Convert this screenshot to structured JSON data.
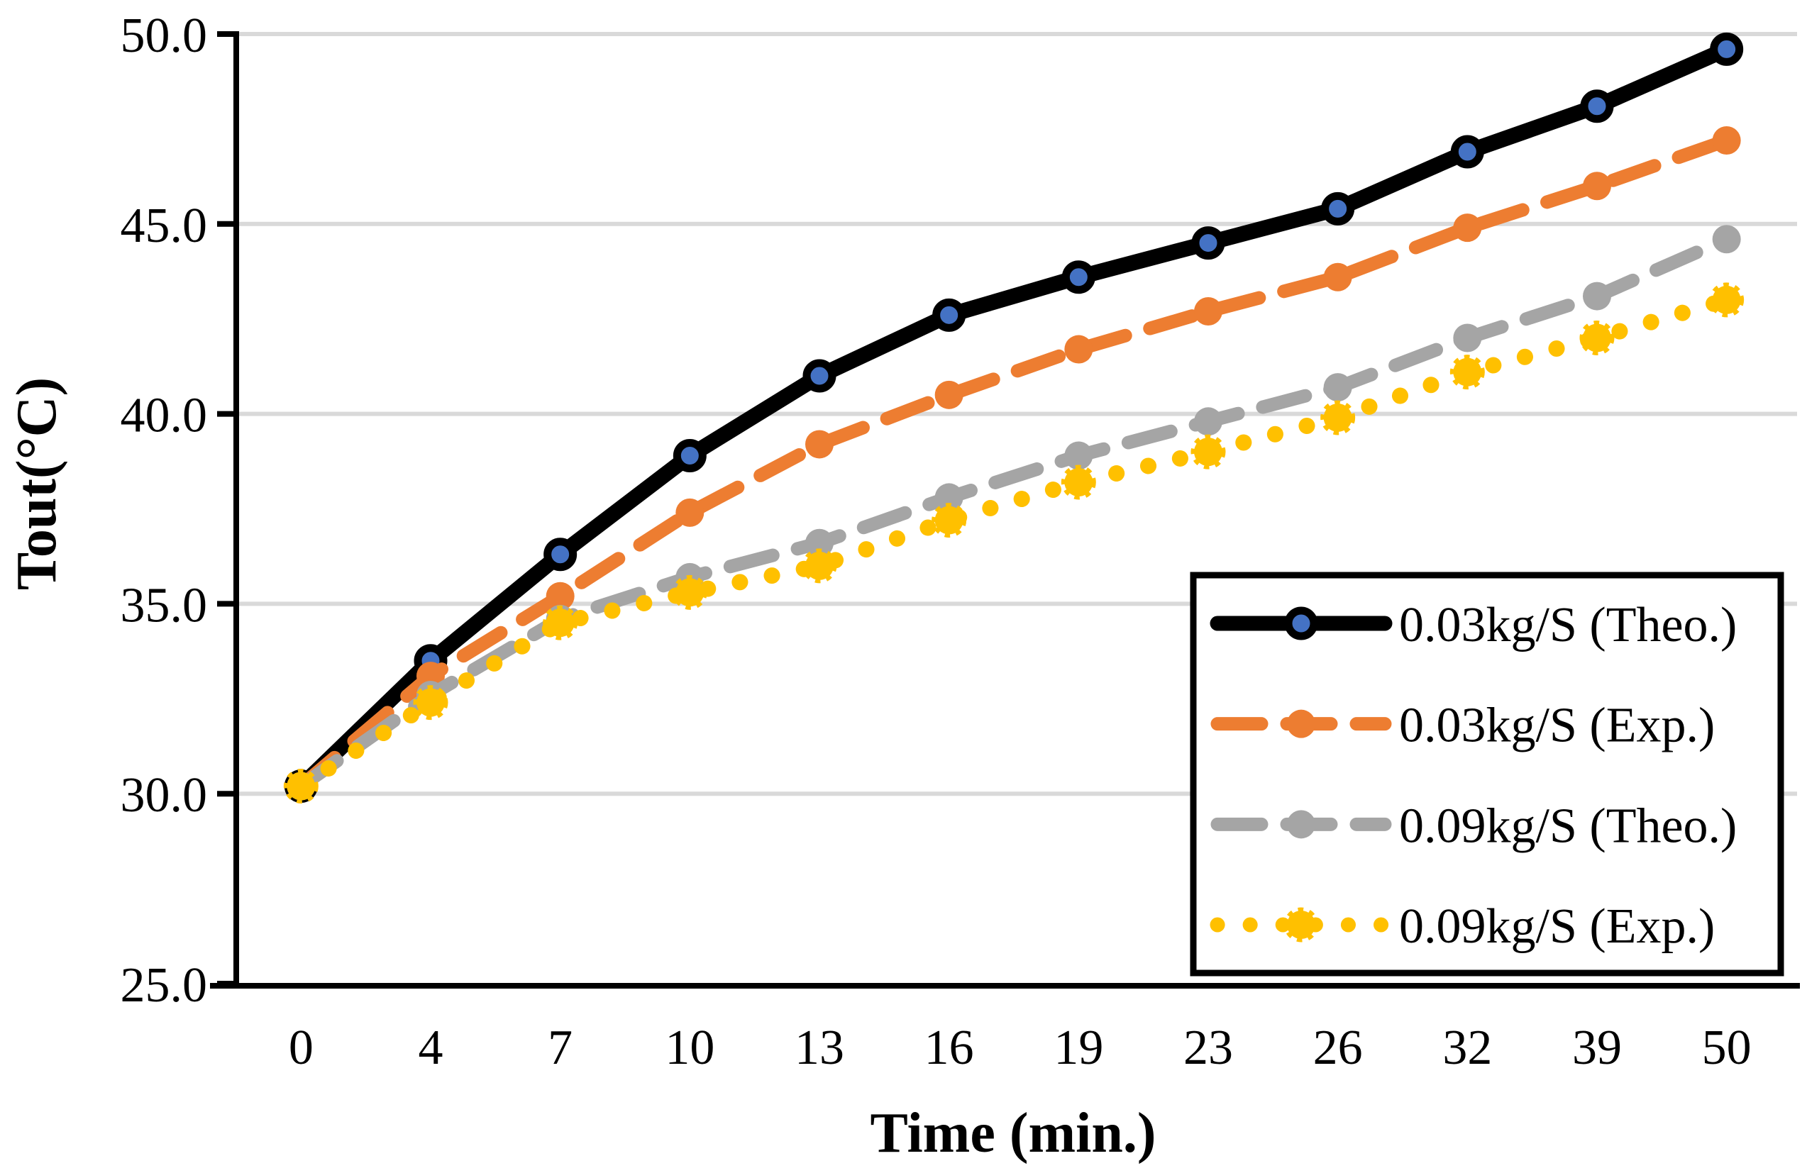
{
  "chart_data": {
    "type": "line",
    "title": "",
    "xlabel": "Time (min.)",
    "ylabel": "Tout(°C)",
    "categories": [
      "0",
      "4",
      "7",
      "10",
      "13",
      "16",
      "19",
      "23",
      "26",
      "32",
      "39",
      "50"
    ],
    "ylim": [
      25.0,
      50.0
    ],
    "ytick_step": 5.0,
    "ytick_labels": [
      "25.0",
      "30.0",
      "35.0",
      "40.0",
      "45.0",
      "50.0"
    ],
    "grid": true,
    "legend_position": "inside-bottom-right",
    "series": [
      {
        "name": "0.03kg/S (Theo.)",
        "values": [
          30.2,
          33.5,
          36.3,
          38.9,
          41.0,
          42.6,
          43.6,
          44.5,
          45.4,
          46.9,
          48.1,
          49.6
        ],
        "line_color": "#000000",
        "marker_color": "#4472C4",
        "marker_outline": "#000000",
        "style": "solid",
        "line_width": 22
      },
      {
        "name": "0.03kg/S (Exp.)",
        "values": [
          30.2,
          33.1,
          35.2,
          37.4,
          39.2,
          40.5,
          41.7,
          42.7,
          43.6,
          44.9,
          46.0,
          47.2
        ],
        "line_color": "#ED7D31",
        "marker_color": "#ED7D31",
        "style": "dashed",
        "line_width": 19
      },
      {
        "name": "0.09kg/S (Theo.)",
        "values": [
          30.2,
          32.6,
          34.6,
          35.7,
          36.6,
          37.8,
          38.9,
          39.8,
          40.7,
          42.0,
          43.1,
          44.6
        ],
        "line_color": "#A5A5A5",
        "marker_color": "#A5A5A5",
        "style": "dashed",
        "line_width": 19
      },
      {
        "name": "0.09kg/S (Exp.)",
        "values": [
          30.2,
          32.4,
          34.5,
          35.3,
          36.0,
          37.2,
          38.2,
          39.0,
          39.9,
          41.1,
          42.0,
          43.0
        ],
        "line_color": "#FFC000",
        "marker_color": "#FFC000",
        "style": "dotted",
        "line_width": 23
      }
    ],
    "colors": {
      "grid": "#D9D9D9",
      "axis": "#000000",
      "background": "#FFFFFF",
      "legend_border": "#000000",
      "legend_fill": "#FFFFFF"
    }
  }
}
